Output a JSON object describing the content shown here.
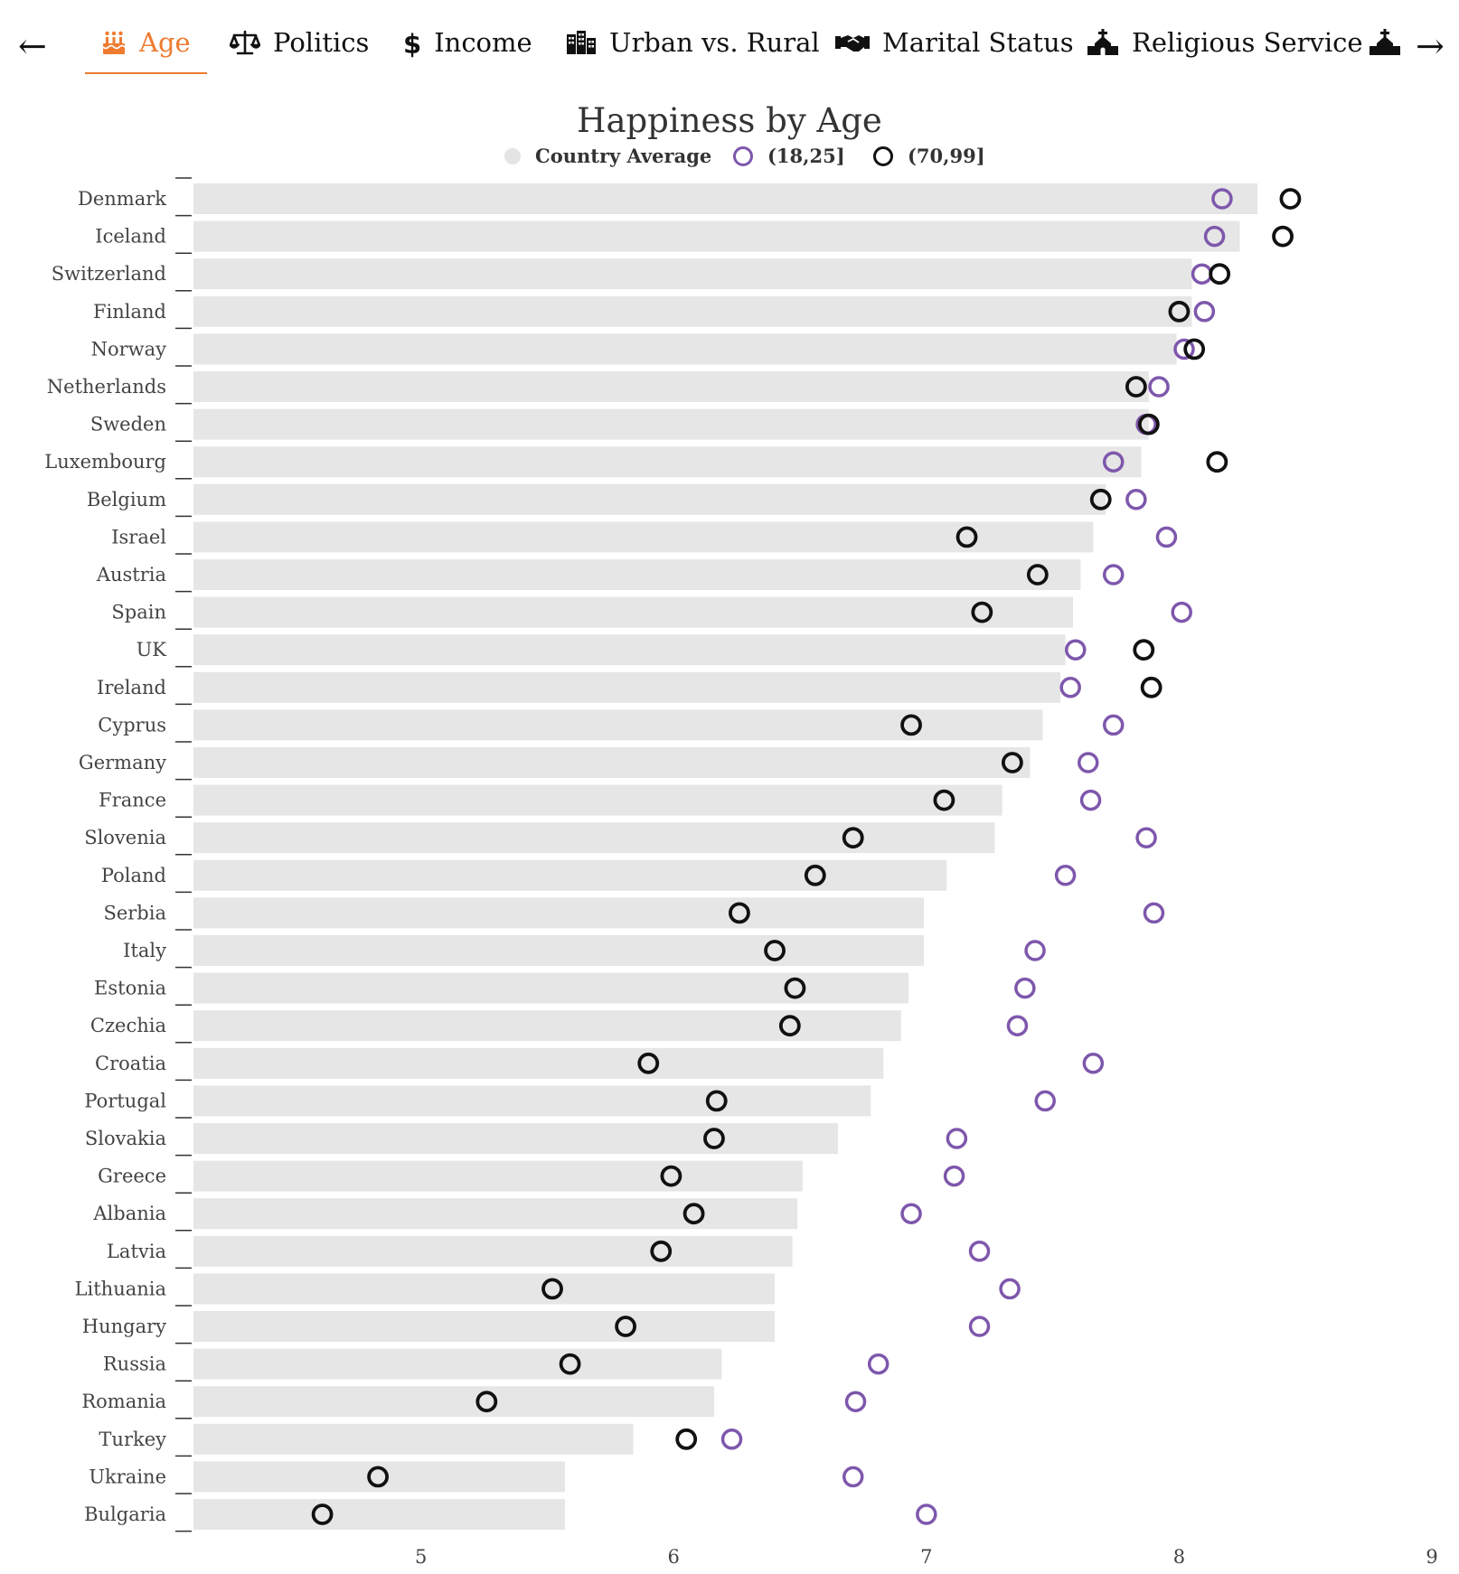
{
  "nav": {
    "prev_arrow": "←",
    "next_arrow": "→",
    "accent_color": "#ee7b30",
    "tabs": [
      {
        "label": "Age",
        "icon": "birthday-cake-icon",
        "active": true
      },
      {
        "label": "Politics",
        "icon": "balance-scale-icon",
        "active": false
      },
      {
        "label": "Income",
        "icon": "dollar-sign-icon",
        "active": false
      },
      {
        "label": "Urban vs. Rural",
        "icon": "city-buildings-icon",
        "active": false
      },
      {
        "label": "Marital Status",
        "icon": "handshake-icon",
        "active": false
      },
      {
        "label": "Religious Service",
        "icon": "church-icon",
        "active": false
      }
    ]
  },
  "chart_data": {
    "type": "dot-bar",
    "title": "Happiness by Age",
    "legend": [
      {
        "label": "Country Average",
        "color": "#e4e4e4"
      },
      {
        "label": "(18,25]",
        "color": "#7e57ac"
      },
      {
        "label": "(70,99]",
        "color": "#111111"
      }
    ],
    "xlim": [
      4.1,
      9.0
    ],
    "xticks": [
      5,
      6,
      7,
      8,
      9
    ],
    "categories": [
      "Denmark",
      "Iceland",
      "Switzerland",
      "Finland",
      "Norway",
      "Netherlands",
      "Sweden",
      "Luxembourg",
      "Belgium",
      "Israel",
      "Austria",
      "Spain",
      "UK",
      "Ireland",
      "Cyprus",
      "Germany",
      "France",
      "Slovenia",
      "Poland",
      "Serbia",
      "Italy",
      "Estonia",
      "Czechia",
      "Croatia",
      "Portugal",
      "Slovakia",
      "Greece",
      "Albania",
      "Latvia",
      "Lithuania",
      "Hungary",
      "Russia",
      "Romania",
      "Turkey",
      "Ukraine",
      "Bulgaria"
    ],
    "series": [
      {
        "name": "Country Average",
        "values": [
          8.31,
          8.24,
          8.05,
          8.05,
          7.99,
          7.88,
          7.88,
          7.85,
          7.71,
          7.66,
          7.61,
          7.58,
          7.55,
          7.53,
          7.46,
          7.41,
          7.3,
          7.27,
          7.08,
          6.99,
          6.99,
          6.93,
          6.9,
          6.83,
          6.78,
          6.65,
          6.51,
          6.49,
          6.47,
          6.4,
          6.4,
          6.19,
          6.16,
          5.84,
          5.57,
          5.57
        ]
      },
      {
        "name": "(18,25]",
        "values": [
          8.17,
          8.14,
          8.09,
          8.1,
          8.02,
          7.92,
          7.87,
          7.74,
          7.83,
          7.95,
          7.74,
          8.01,
          7.59,
          7.57,
          7.74,
          7.64,
          7.65,
          7.87,
          7.55,
          7.9,
          7.43,
          7.39,
          7.36,
          7.66,
          7.47,
          7.12,
          7.11,
          6.94,
          7.21,
          7.33,
          7.21,
          6.81,
          6.72,
          6.23,
          6.71,
          7.0
        ]
      },
      {
        "name": "(70,99]",
        "values": [
          8.44,
          8.41,
          8.16,
          8.0,
          8.06,
          7.83,
          7.88,
          8.15,
          7.69,
          7.16,
          7.44,
          7.22,
          7.86,
          7.89,
          6.94,
          7.34,
          7.07,
          6.71,
          6.56,
          6.26,
          6.4,
          6.48,
          6.46,
          5.9,
          6.17,
          6.16,
          5.99,
          6.08,
          5.95,
          5.52,
          5.81,
          5.59,
          5.26,
          6.05,
          4.83,
          4.61
        ]
      }
    ]
  }
}
